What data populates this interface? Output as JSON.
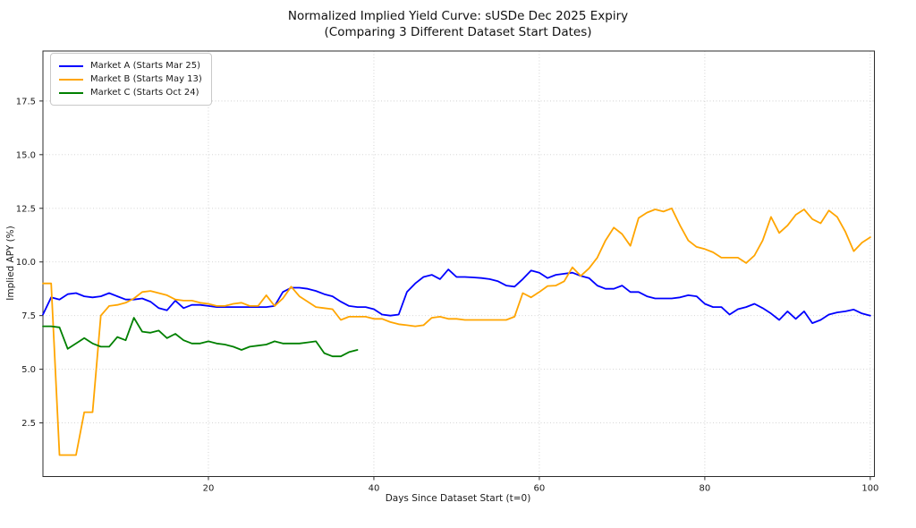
{
  "chart_data": {
    "type": "line",
    "title": "Normalized Implied Yield Curve: sUSDe Dec 2025 Expiry",
    "subtitle": "(Comparing 3 Different Dataset Start Dates)",
    "xlabel": "Days Since Dataset Start (t=0)",
    "ylabel": "Implied APY (%)",
    "xlim": [
      0,
      100.5
    ],
    "ylim": [
      0,
      19.83
    ],
    "xticks": [
      20,
      40,
      60,
      80,
      100
    ],
    "xtick_labels": [
      "20",
      "40",
      "60",
      "80",
      "100"
    ],
    "yticks": [
      2.5,
      5.0,
      7.5,
      10.0,
      12.5,
      15.0,
      17.5
    ],
    "ytick_labels": [
      "2.5",
      "5.0",
      "7.5",
      "10.0",
      "12.5",
      "15.0",
      "17.5"
    ],
    "grid": "dotted",
    "grid_color": "#cfcfcf",
    "legend_position": "upper-left",
    "x_step": 1,
    "series": [
      {
        "name": "Market A (Starts Mar 25)",
        "color": "#0000ff",
        "x_start": 0,
        "values": [
          7.55,
          8.35,
          8.25,
          8.5,
          8.55,
          8.4,
          8.35,
          8.4,
          8.55,
          8.4,
          8.25,
          8.25,
          8.3,
          8.15,
          7.85,
          7.75,
          8.2,
          7.85,
          8.0,
          8.0,
          7.95,
          7.9,
          7.9,
          7.9,
          7.9,
          7.9,
          7.9,
          7.9,
          7.95,
          8.6,
          8.8,
          8.8,
          8.75,
          8.65,
          8.5,
          8.4,
          8.15,
          7.95,
          7.9,
          7.9,
          7.8,
          7.55,
          7.5,
          7.55,
          8.6,
          9.0,
          9.3,
          9.4,
          9.2,
          9.65,
          9.3,
          9.3,
          9.28,
          9.25,
          9.2,
          9.1,
          8.9,
          8.85,
          9.2,
          9.6,
          9.5,
          9.25,
          9.4,
          9.45,
          9.5,
          9.35,
          9.25,
          8.9,
          8.75,
          8.75,
          8.9,
          8.6,
          8.6,
          8.4,
          8.3,
          8.3,
          8.3,
          8.35,
          8.45,
          8.4,
          8.05,
          7.9,
          7.9,
          7.55,
          7.8,
          7.9,
          8.05,
          7.85,
          7.6,
          7.3,
          7.7,
          7.35,
          7.7,
          7.15,
          7.3,
          7.55,
          7.65,
          7.7,
          7.78,
          7.6,
          7.5
        ]
      },
      {
        "name": "Market B (Starts May 13)",
        "color": "#ffa500",
        "x_start": 0,
        "values": [
          9.0,
          9.0,
          1.0,
          1.0,
          1.0,
          3.0,
          3.0,
          7.5,
          7.95,
          8.0,
          8.1,
          8.3,
          8.6,
          8.65,
          8.55,
          8.45,
          8.25,
          8.2,
          8.2,
          8.1,
          8.05,
          7.95,
          7.95,
          8.05,
          8.1,
          7.95,
          7.95,
          8.45,
          7.95,
          8.3,
          8.85,
          8.4,
          8.15,
          7.9,
          7.85,
          7.8,
          7.3,
          7.45,
          7.45,
          7.45,
          7.35,
          7.35,
          7.2,
          7.1,
          7.05,
          7.0,
          7.05,
          7.4,
          7.45,
          7.35,
          7.35,
          7.3,
          7.3,
          7.3,
          7.3,
          7.3,
          7.3,
          7.45,
          8.55,
          8.35,
          8.6,
          8.88,
          8.9,
          9.1,
          9.75,
          9.35,
          9.7,
          10.2,
          11.0,
          11.6,
          11.3,
          10.75,
          12.05,
          12.3,
          12.45,
          12.35,
          12.5,
          11.7,
          11.0,
          10.7,
          10.6,
          10.45,
          10.2,
          10.2,
          10.2,
          9.95,
          10.3,
          11.0,
          12.1,
          11.35,
          11.7,
          12.2,
          12.45,
          12.0,
          11.8,
          12.4,
          12.1,
          11.4,
          10.5,
          10.9,
          11.15
        ]
      },
      {
        "name": "Market C (Starts Oct 24)",
        "color": "#008000",
        "x_start": 0,
        "values": [
          7.0,
          7.0,
          6.95,
          5.95,
          6.2,
          6.45,
          6.2,
          6.05,
          6.05,
          6.5,
          6.35,
          7.4,
          6.75,
          6.7,
          6.8,
          6.45,
          6.65,
          6.35,
          6.2,
          6.2,
          6.3,
          6.2,
          6.15,
          6.05,
          5.9,
          6.05,
          6.1,
          6.15,
          6.3,
          6.2,
          6.2,
          6.2,
          6.25,
          6.3,
          5.75,
          5.6,
          5.6,
          5.8,
          5.9
        ]
      }
    ]
  }
}
